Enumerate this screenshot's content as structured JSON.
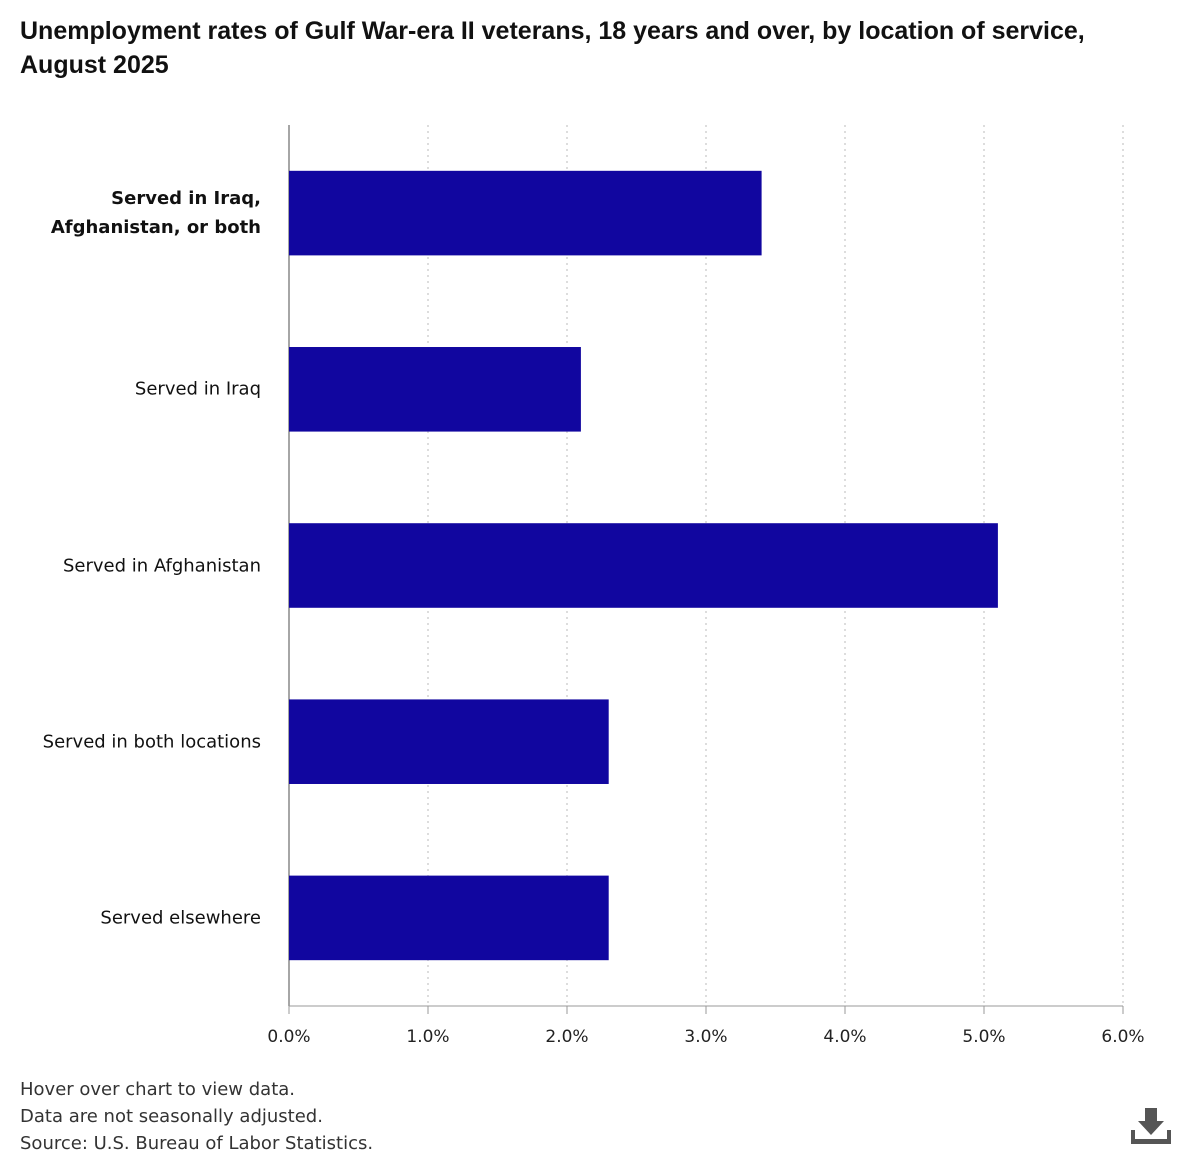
{
  "chart_data": {
    "type": "bar",
    "orientation": "horizontal",
    "title": "Unemployment rates of Gulf War-era II veterans, 18 years and over, by location of service, August 2025",
    "categories": [
      "Served in Iraq, Afghanistan, or both",
      "Served in Iraq",
      "Served in Afghanistan",
      "Served in both locations",
      "Served elsewhere"
    ],
    "values": [
      3.4,
      2.1,
      5.1,
      2.3,
      2.3
    ],
    "color": "#11069f",
    "xlim": [
      0,
      6
    ],
    "xticks": [
      {
        "value": 0,
        "label": "0.0%"
      },
      {
        "value": 1,
        "label": "1.0%"
      },
      {
        "value": 2,
        "label": "2.0%"
      },
      {
        "value": 3,
        "label": "3.0%"
      },
      {
        "value": 4,
        "label": "4.0%"
      },
      {
        "value": 5,
        "label": "5.0%"
      },
      {
        "value": 6,
        "label": "6.0%"
      }
    ],
    "grid": true,
    "notes": [
      "Hover over chart to view data.",
      "Data are not seasonally adjusted.",
      "Source: U.S. Bureau of Labor Statistics."
    ]
  }
}
